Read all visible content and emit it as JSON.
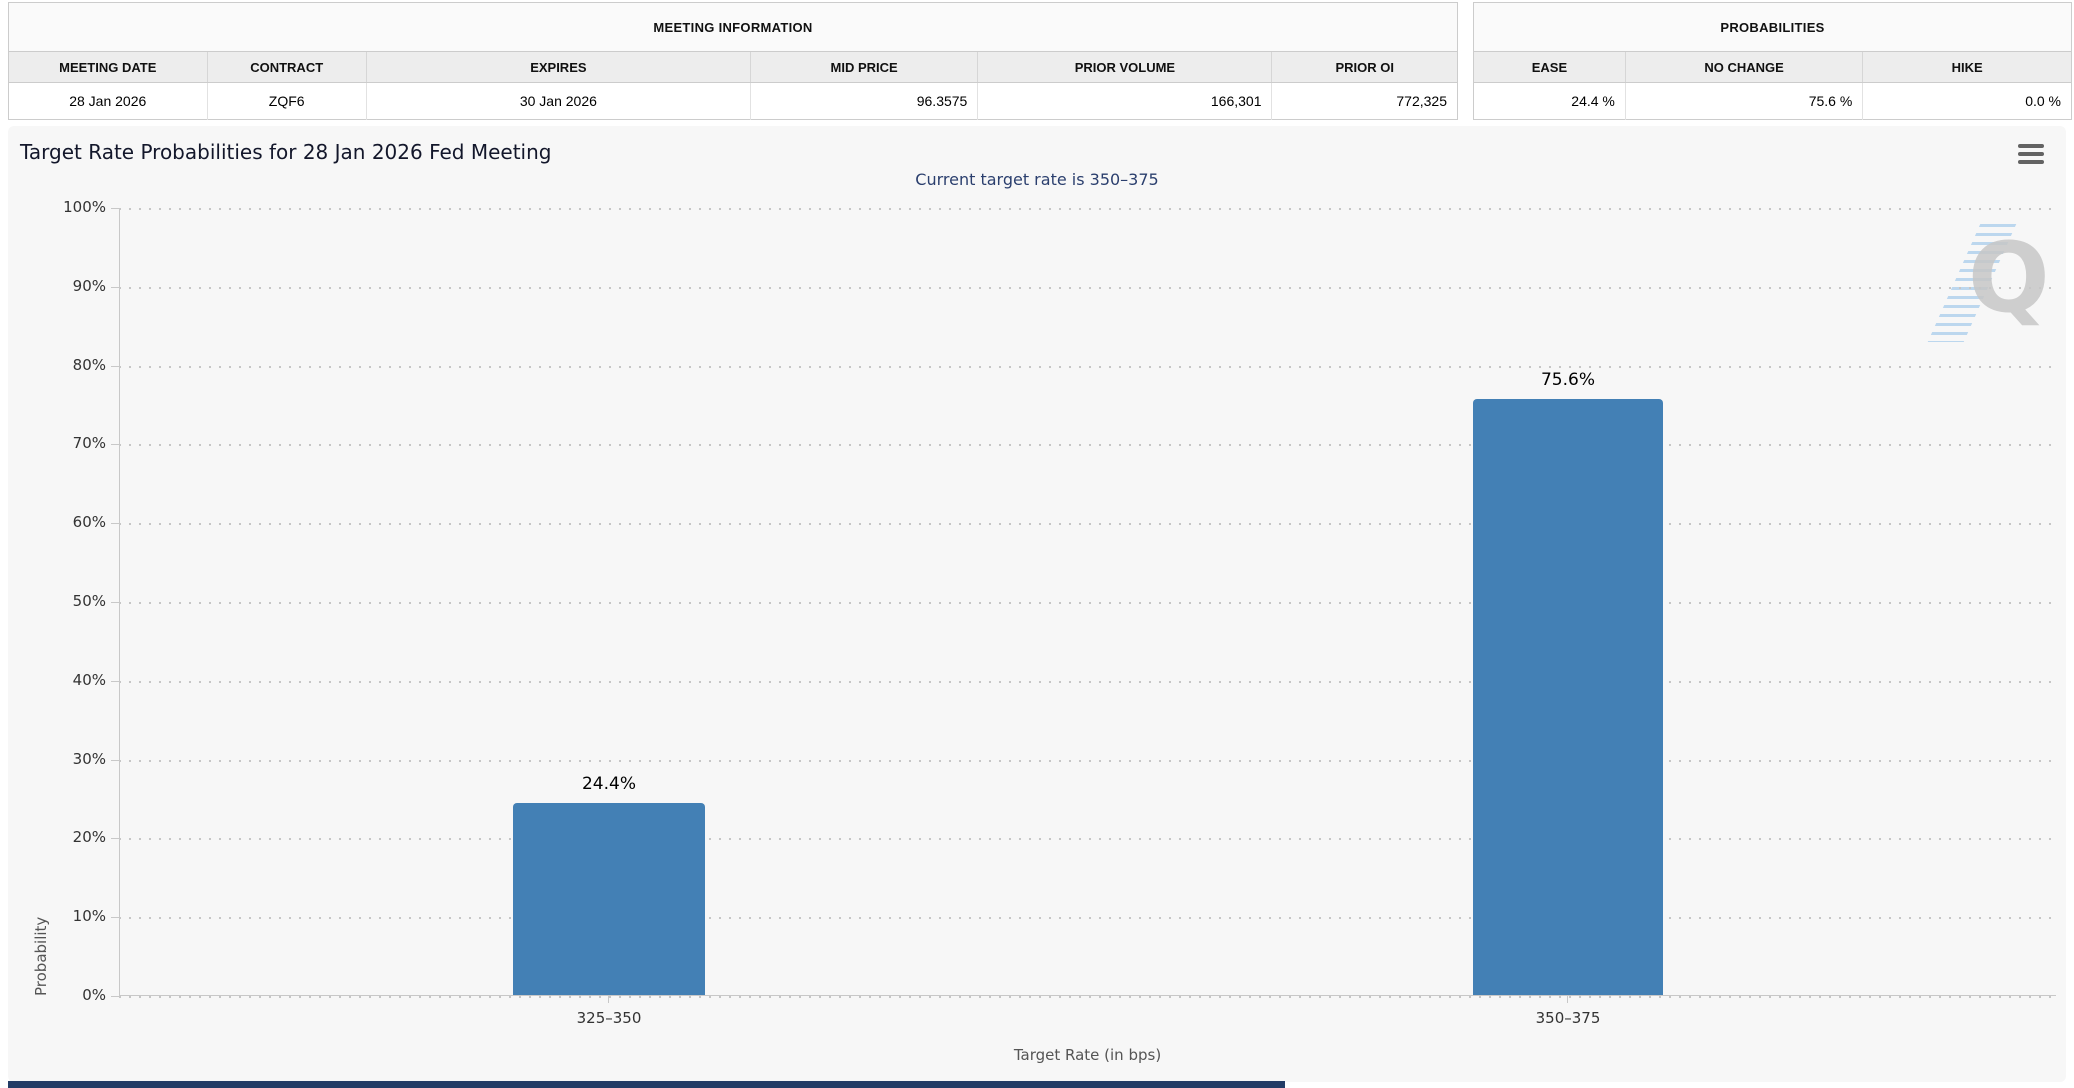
{
  "meeting_information": {
    "title": "MEETING INFORMATION",
    "columns": [
      "MEETING DATE",
      "CONTRACT",
      "EXPIRES",
      "MID PRICE",
      "PRIOR VOLUME",
      "PRIOR OI"
    ],
    "values": [
      "28 Jan 2026",
      "ZQF6",
      "30 Jan 2026",
      "96.3575",
      "166,301",
      "772,325"
    ]
  },
  "probabilities": {
    "title": "PROBABILITIES",
    "columns": [
      "EASE",
      "NO CHANGE",
      "HIKE"
    ],
    "values": [
      "24.4 %",
      "75.6 %",
      "0.0 %"
    ]
  },
  "chart": {
    "title": "Target Rate Probabilities for 28 Jan 2026 Fed Meeting",
    "subtitle": "Current target rate is 350–375",
    "menu_icon": "hamburger-menu-icon",
    "watermark_letter": "Q"
  },
  "chart_data": {
    "type": "bar",
    "title": "Target Rate Probabilities for 28 Jan 2026 Fed Meeting",
    "subtitle": "Current target rate is 350–375",
    "categories": [
      "325–350",
      "350–375"
    ],
    "values": [
      24.4,
      75.6
    ],
    "data_labels": [
      "24.4%",
      "75.6%"
    ],
    "xlabel": "Target Rate (in bps)",
    "ylabel": "Probability",
    "ylim": [
      0,
      100
    ],
    "ytick_step": 10,
    "ytick_labels": [
      "100%",
      "90%",
      "80%",
      "70%",
      "60%",
      "50%",
      "40%",
      "30%",
      "20%",
      "10%",
      "0%"
    ],
    "grid": "dotted-horizontal",
    "legend": "none",
    "bar_color": "#4380b5"
  },
  "colors": {
    "bar": "#4380b5",
    "panel_bg": "#f7f7f7",
    "subtitle_text": "#2b3f6e",
    "bottom_strip": "#233c66",
    "watermark_blue": "#9cc6ea",
    "watermark_gray": "#c7c7c7"
  }
}
